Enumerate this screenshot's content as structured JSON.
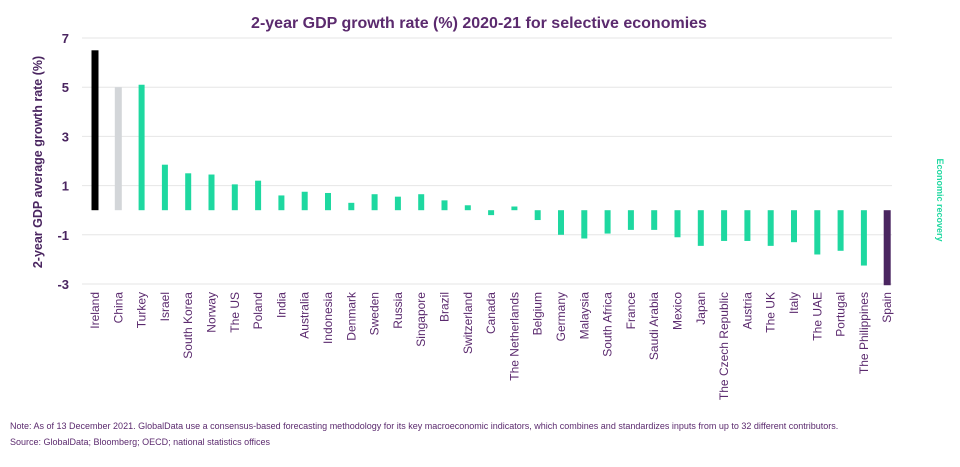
{
  "chart_data": {
    "type": "bar",
    "title": "2-year GDP growth rate (%) 2020-21 for selective economies",
    "ylabel": "2-year GDP average growth rate (%)",
    "right_label": "Economic recovery",
    "ylim": [
      -3,
      7
    ],
    "y_ticks": [
      "7",
      "5",
      "3",
      "1",
      "-1",
      "-3"
    ],
    "grid": "horizontal",
    "categories": [
      "Ireland",
      "China",
      "Turkey",
      "Israel",
      "South Korea",
      "Norway",
      "The US",
      "Poland",
      "India",
      "Australia",
      "Indonesia",
      "Denmark",
      "Sweden",
      "Russia",
      "Singapore",
      "Brazil",
      "Switzerland",
      "Canada",
      "The Netherlands",
      "Belgium",
      "Germany",
      "Malaysia",
      "South Africa",
      "France",
      "Saudi Arabia",
      "Mexico",
      "Japan",
      "The Czech Republic",
      "Austria",
      "The UK",
      "Italy",
      "The UAE",
      "Portugal",
      "The Philippines",
      "Spain"
    ],
    "values": [
      6.5,
      5.0,
      5.1,
      1.85,
      1.5,
      1.45,
      1.05,
      1.2,
      0.6,
      0.75,
      0.7,
      0.3,
      0.65,
      0.55,
      0.65,
      0.4,
      0.2,
      -0.2,
      0.15,
      -0.4,
      -1.0,
      -1.15,
      -0.95,
      -0.8,
      -0.8,
      -1.1,
      -1.45,
      -1.25,
      -1.25,
      -1.45,
      -1.3,
      -1.8,
      -1.65,
      -2.25,
      -3.05
    ],
    "colors": {
      "Ireland": "#000000",
      "China": "#d3d6d9",
      "Spain": "#4a2560",
      "default": "#1ed8a0"
    }
  },
  "footer": {
    "note": "Note: As of 13 December 2021. GlobalData use a consensus-based forecasting methodology for its key macroeconomic indicators, which combines and standardizes inputs from up to 32 different contributors.",
    "source": "Source: GlobalData; Bloomberg; OECD; national statistics offices"
  }
}
